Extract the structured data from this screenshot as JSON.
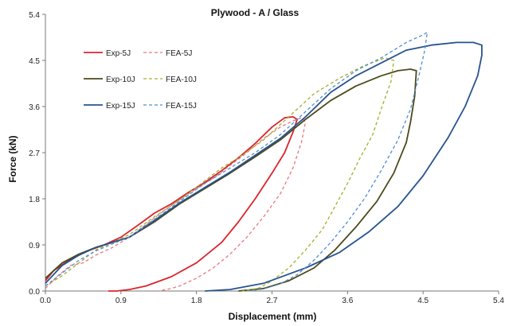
{
  "chart_data": {
    "type": "line",
    "title": "Plywood - A / Glass",
    "xlabel": "Displacement (mm)",
    "ylabel": "Force (kN)",
    "xlim": [
      0,
      5.4
    ],
    "ylim": [
      0,
      5.4
    ],
    "xticks": [
      "0.0",
      "0.9",
      "1.8",
      "2.7",
      "3.6",
      "4.5",
      "5.4"
    ],
    "yticks": [
      "0.0",
      "0.9",
      "1.8",
      "2.7",
      "3.6",
      "4.5",
      "5.4"
    ],
    "grid": false,
    "legend_position": "top-left",
    "series": [
      {
        "name": "Exp-5J",
        "color": "#d9252e",
        "dash": false,
        "x": [
          0.0,
          0.1,
          0.3,
          0.5,
          0.7,
          0.9,
          1.1,
          1.3,
          1.5,
          1.7,
          1.9,
          2.1,
          2.3,
          2.5,
          2.7,
          2.85,
          2.95,
          3.0,
          2.95,
          2.85,
          2.7,
          2.5,
          2.3,
          2.1,
          1.8,
          1.5,
          1.2,
          1.0,
          0.85,
          0.75
        ],
        "y": [
          0.2,
          0.4,
          0.62,
          0.78,
          0.9,
          1.05,
          1.28,
          1.52,
          1.7,
          1.92,
          2.12,
          2.35,
          2.6,
          2.88,
          3.2,
          3.38,
          3.4,
          3.35,
          3.1,
          2.7,
          2.3,
          1.8,
          1.35,
          0.95,
          0.55,
          0.28,
          0.1,
          0.03,
          0.0,
          0.0
        ]
      },
      {
        "name": "FEA-5J",
        "color": "#e8787f",
        "dash": true,
        "x": [
          0.0,
          0.15,
          0.3,
          0.45,
          0.6,
          0.8,
          1.0,
          1.2,
          1.4,
          1.6,
          1.8,
          2.0,
          2.2,
          2.4,
          2.6,
          2.8,
          2.95,
          3.05,
          3.1,
          3.05,
          2.95,
          2.8,
          2.6,
          2.4,
          2.2,
          2.0,
          1.8,
          1.6,
          1.5,
          1.35
        ],
        "y": [
          0.05,
          0.3,
          0.5,
          0.55,
          0.7,
          0.85,
          1.05,
          1.3,
          1.55,
          1.78,
          2.0,
          2.2,
          2.45,
          2.7,
          2.98,
          3.2,
          3.32,
          3.38,
          3.3,
          2.9,
          2.4,
          1.9,
          1.45,
          1.05,
          0.72,
          0.45,
          0.25,
          0.1,
          0.05,
          0.0
        ]
      },
      {
        "name": "Exp-10J",
        "color": "#4d4a1c",
        "dash": false,
        "x": [
          0.0,
          0.2,
          0.4,
          0.6,
          0.8,
          1.0,
          1.3,
          1.6,
          1.9,
          2.2,
          2.5,
          2.8,
          3.1,
          3.4,
          3.7,
          4.0,
          4.2,
          4.35,
          4.42,
          4.4,
          4.35,
          4.3,
          4.15,
          3.95,
          3.7,
          3.45,
          3.2,
          2.9,
          2.6,
          2.3
        ],
        "y": [
          0.25,
          0.55,
          0.72,
          0.85,
          0.95,
          1.05,
          1.35,
          1.7,
          2.0,
          2.3,
          2.62,
          2.95,
          3.35,
          3.72,
          4.0,
          4.2,
          4.3,
          4.33,
          4.3,
          3.8,
          3.3,
          2.9,
          2.3,
          1.75,
          1.25,
          0.8,
          0.45,
          0.2,
          0.05,
          0.0
        ]
      },
      {
        "name": "FEA-10J",
        "color": "#a6ad2c",
        "dash": true,
        "x": [
          0.0,
          0.2,
          0.4,
          0.6,
          0.8,
          1.0,
          1.3,
          1.6,
          1.9,
          2.1,
          2.3,
          2.6,
          2.9,
          3.2,
          3.5,
          3.8,
          4.05,
          4.15,
          4.12,
          4.0,
          3.9,
          3.75,
          3.6,
          3.45,
          3.3,
          3.1,
          2.9,
          2.7,
          2.55,
          2.35
        ],
        "y": [
          0.1,
          0.3,
          0.55,
          0.8,
          0.95,
          1.1,
          1.45,
          1.78,
          2.15,
          2.4,
          2.6,
          2.95,
          3.4,
          3.85,
          4.15,
          4.4,
          4.55,
          4.5,
          4.1,
          3.55,
          3.05,
          2.6,
          2.1,
          1.65,
          1.2,
          0.8,
          0.45,
          0.2,
          0.06,
          0.0
        ]
      },
      {
        "name": "Exp-15J",
        "color": "#27538f",
        "dash": false,
        "x": [
          0.0,
          0.2,
          0.4,
          0.6,
          0.8,
          1.0,
          1.3,
          1.6,
          1.9,
          2.2,
          2.5,
          2.8,
          3.1,
          3.4,
          3.7,
          4.0,
          4.3,
          4.6,
          4.9,
          5.1,
          5.2,
          5.2,
          5.15,
          5.0,
          4.8,
          4.5,
          4.2,
          3.85,
          3.5,
          3.1,
          2.6,
          2.2,
          1.9
        ],
        "y": [
          0.15,
          0.5,
          0.7,
          0.85,
          0.95,
          1.05,
          1.38,
          1.72,
          2.02,
          2.32,
          2.65,
          2.98,
          3.4,
          3.88,
          4.2,
          4.45,
          4.7,
          4.8,
          4.85,
          4.85,
          4.8,
          4.6,
          4.2,
          3.6,
          3.0,
          2.25,
          1.65,
          1.15,
          0.75,
          0.45,
          0.15,
          0.03,
          0.0
        ]
      },
      {
        "name": "FEA-15J",
        "color": "#4f8fcf",
        "dash": true,
        "x": [
          0.0,
          0.2,
          0.4,
          0.6,
          0.8,
          1.0,
          1.3,
          1.6,
          1.9,
          2.2,
          2.5,
          2.8,
          3.1,
          3.4,
          3.7,
          4.0,
          4.3,
          4.5,
          4.55,
          4.52,
          4.45,
          4.35,
          4.2,
          4.0,
          3.8,
          3.6,
          3.4,
          3.2,
          3.0,
          2.8,
          2.6,
          2.4
        ],
        "y": [
          0.1,
          0.35,
          0.6,
          0.78,
          0.92,
          1.05,
          1.4,
          1.75,
          2.1,
          2.4,
          2.7,
          3.05,
          3.5,
          3.95,
          4.3,
          4.55,
          4.85,
          5.0,
          5.05,
          4.7,
          4.2,
          3.55,
          2.95,
          2.35,
          1.8,
          1.35,
          0.95,
          0.6,
          0.32,
          0.14,
          0.04,
          0.0
        ]
      }
    ]
  }
}
